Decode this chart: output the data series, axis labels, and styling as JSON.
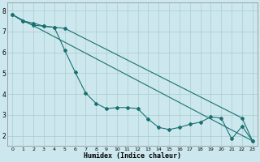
{
  "xlabel": "Humidex (Indice chaleur)",
  "bg_color": "#cce8ee",
  "grid_color": "#aacccc",
  "line_color": "#1a7070",
  "xlim": [
    -0.5,
    23.5
  ],
  "ylim": [
    1.5,
    8.4
  ],
  "x_ticks": [
    0,
    1,
    2,
    3,
    4,
    5,
    6,
    7,
    8,
    9,
    10,
    11,
    12,
    13,
    14,
    15,
    16,
    17,
    18,
    19,
    20,
    21,
    22,
    23
  ],
  "y_ticks": [
    2,
    3,
    4,
    5,
    6,
    7,
    8
  ],
  "line_straight": {
    "x": [
      0,
      23
    ],
    "y": [
      7.8,
      1.75
    ]
  },
  "line_upper": {
    "x": [
      0,
      1,
      2,
      3,
      4,
      5,
      22,
      23
    ],
    "y": [
      7.8,
      7.5,
      7.4,
      7.25,
      7.2,
      7.15,
      2.85,
      1.75
    ]
  },
  "line_wavy": {
    "x": [
      0,
      1,
      2,
      3,
      4,
      5,
      6,
      7,
      8,
      9,
      10,
      11,
      12,
      13,
      14,
      15,
      16,
      17,
      18,
      19,
      20,
      21,
      22,
      23
    ],
    "y": [
      7.8,
      7.5,
      7.3,
      7.25,
      7.2,
      6.1,
      5.05,
      4.05,
      3.55,
      3.3,
      3.35,
      3.35,
      3.3,
      2.8,
      2.4,
      2.3,
      2.4,
      2.55,
      2.65,
      2.9,
      2.85,
      1.85,
      2.45,
      1.75
    ]
  }
}
